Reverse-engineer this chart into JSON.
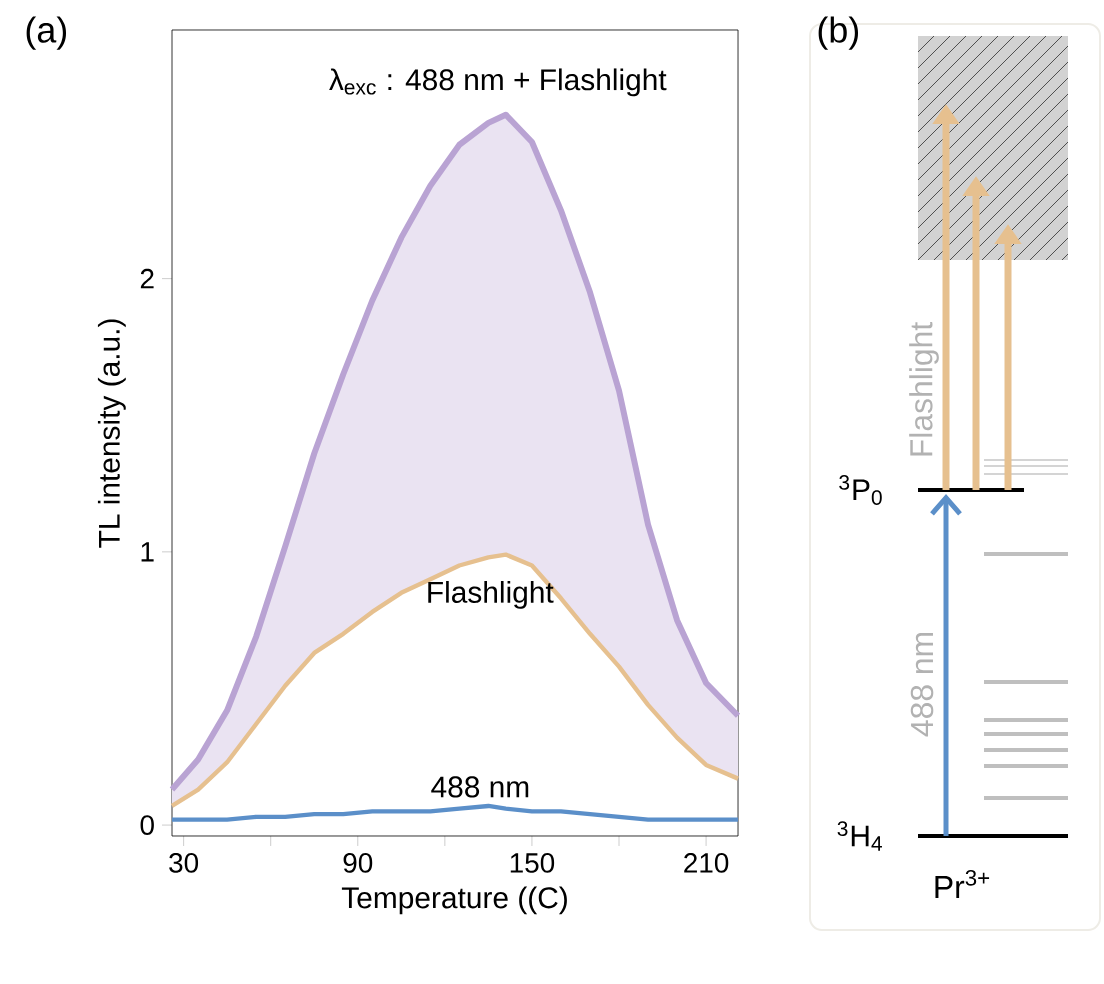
{
  "chart_data": [
    {
      "type": "line",
      "xlabel": "Temperature  ((C)",
      "ylabel": "TL intensity (a.u.)",
      "annotations": [
        "(a)"
      ],
      "xlim": [
        26,
        221
      ],
      "ylim": [
        -0.04,
        2.91
      ],
      "xticks": [
        30,
        {
          "value": 60,
          "label": null
        },
        90,
        {
          "value": 120,
          "label": null
        },
        150,
        {
          "value": 180,
          "label": null
        },
        210
      ],
      "yticks": [
        0,
        1,
        2
      ],
      "marker": "none",
      "line_style": "solid",
      "x": [
        26,
        35,
        45,
        55,
        65,
        75,
        85,
        95,
        105,
        115,
        125,
        135,
        141,
        150,
        160,
        170,
        180,
        190,
        200,
        210,
        221
      ],
      "series": [
        {
          "name": "λ$_{exc}$ : 488 nm + Flashlight",
          "color": "#b9a3d3",
          "values": [
            0.13,
            0.24,
            0.42,
            0.69,
            1.02,
            1.36,
            1.65,
            1.92,
            2.15,
            2.34,
            2.49,
            2.57,
            2.6,
            2.5,
            2.25,
            1.95,
            1.59,
            1.1,
            0.75,
            0.52,
            0.4
          ],
          "lower": [
            0.07,
            0.13,
            0.23,
            0.37,
            0.51,
            0.63,
            0.7,
            0.78,
            0.85,
            0.9,
            0.95,
            0.98,
            0.99,
            0.95,
            0.83,
            0.7,
            0.58,
            0.44,
            0.32,
            0.22,
            0.17
          ],
          "upper": [
            0.13,
            0.24,
            0.42,
            0.69,
            1.02,
            1.36,
            1.65,
            1.92,
            2.15,
            2.34,
            2.49,
            2.57,
            2.6,
            2.5,
            2.25,
            1.95,
            1.59,
            1.1,
            0.75,
            0.52,
            0.4
          ]
        },
        {
          "name": "Flashlight",
          "color": "#e6c08f",
          "values": [
            0.07,
            0.13,
            0.23,
            0.37,
            0.51,
            0.63,
            0.7,
            0.78,
            0.85,
            0.9,
            0.95,
            0.98,
            0.99,
            0.95,
            0.83,
            0.7,
            0.58,
            0.44,
            0.32,
            0.22,
            0.17
          ]
        },
        {
          "name": "488 nm",
          "color": "#5b8fc9",
          "values": [
            0.02,
            0.02,
            0.02,
            0.03,
            0.03,
            0.04,
            0.04,
            0.05,
            0.05,
            0.05,
            0.06,
            0.07,
            0.06,
            0.05,
            0.05,
            0.04,
            0.03,
            0.02,
            0.02,
            0.02,
            0.02
          ]
        }
      ]
    },
    {
      "type": "other",
      "title": "(b)",
      "annotations": [
        "Flashlight",
        "488 nm",
        "$^{3}$P$_{0}$",
        "$^{3}$H$_{4}$",
        "Pr$^{3+}$"
      ]
    }
  ]
}
